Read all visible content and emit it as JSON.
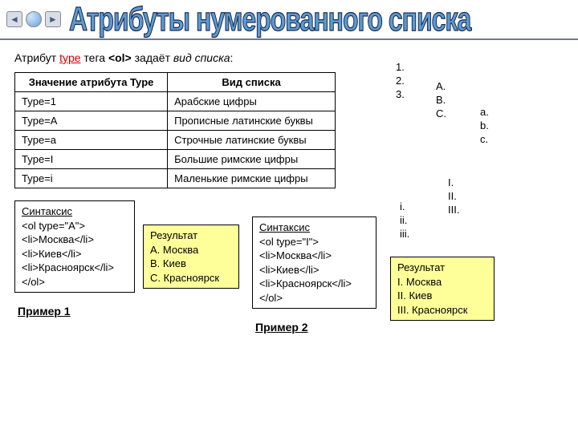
{
  "colors": {
    "title_fill": "#5a9bd4",
    "title_stroke": "#1e2b4d",
    "rule": "#6c7a8c",
    "yellow": "#ffff99",
    "keyword_red": "#c00000"
  },
  "title": "Атрибуты нумерованного списка",
  "intro": {
    "prefix": "Атрибут ",
    "keyword": "type",
    "middle": " тега ",
    "tag": "<ol>",
    "suffix": " задаёт ",
    "italic": "вид списка",
    "end": ":"
  },
  "table": {
    "headers": [
      "Значение атрибута Type",
      "Вид списка"
    ],
    "rows": [
      [
        "Type=1",
        "Арабские цифры"
      ],
      [
        "Type=A",
        "Прописные латинские буквы"
      ],
      [
        "Type=a",
        "Строчные латинские буквы"
      ],
      [
        "Type=I",
        "Большие римские цифры"
      ],
      [
        "Type=i",
        "Маленькие римские цифры"
      ]
    ]
  },
  "syntax1": {
    "title": "Синтаксис",
    "lines": [
      "<ol type=\"A\">",
      "<li>Москва</li>",
      "<li>Киев</li>",
      "<li>Красноярск</li>",
      "</ol>"
    ]
  },
  "result1": {
    "title": "Результат",
    "lines": [
      "A. Москва",
      "B. Киев",
      "C. Красноярск"
    ]
  },
  "syntax2": {
    "title": "Синтаксис",
    "lines": [
      "<ol type=\"I\">",
      "<li>Москва</li>",
      "<li>Киев</li>",
      "<li>Красноярск</li>",
      "</ol>"
    ]
  },
  "result2": {
    "title": "Результат",
    "lines": [
      "I. Москва",
      "II. Киев",
      "III. Красноярск"
    ]
  },
  "example1_label": "Пример 1",
  "example2_label": "Пример 2",
  "mini_lists": {
    "num": [
      "1.",
      "2.",
      "3."
    ],
    "upA": [
      "A.",
      "B.",
      "C."
    ],
    "loa": [
      "a.",
      "b.",
      "c."
    ],
    "upI": [
      "I.",
      "II.",
      "III."
    ],
    "loi": [
      "i.",
      "ii.",
      "iii."
    ]
  }
}
